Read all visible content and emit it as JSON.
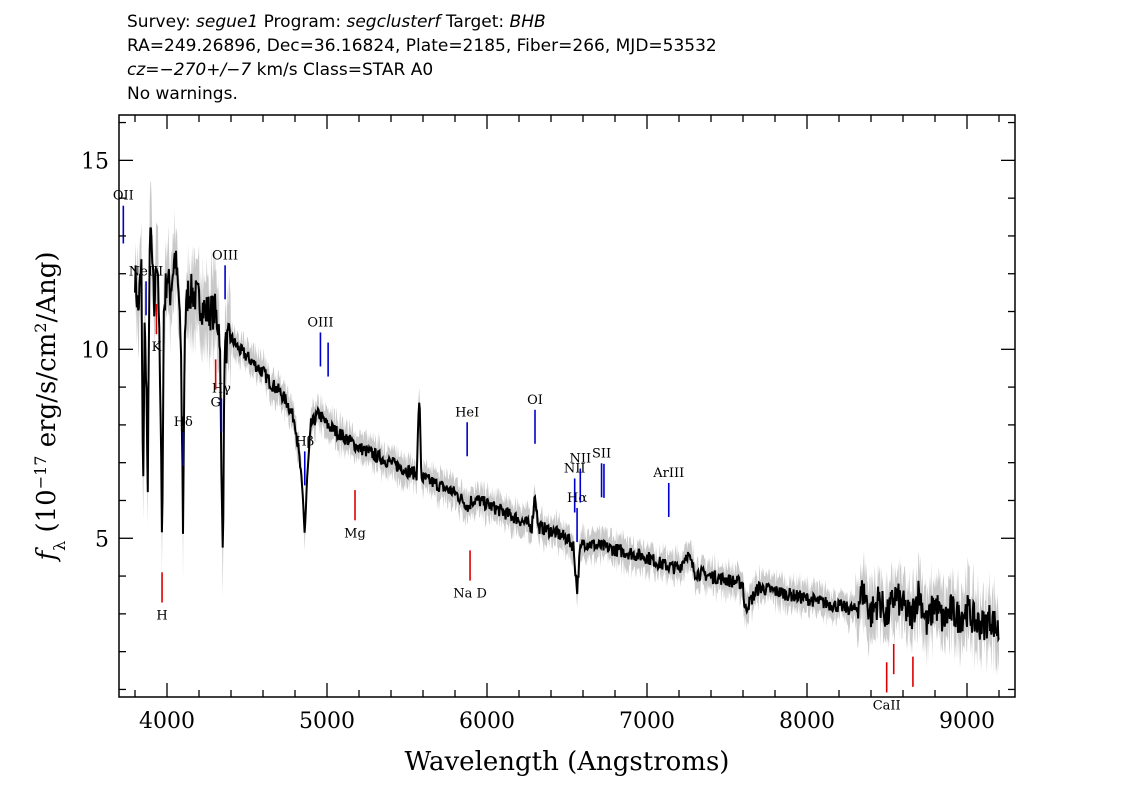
{
  "header": {
    "survey_label": "Survey:",
    "survey": "segue1",
    "program_label": "Program:",
    "program": "segclusterf",
    "target_label": "Target:",
    "target": "BHB",
    "line2": "RA=249.26896, Dec=36.16824, Plate=2185, Fiber=266, MJD=53532",
    "cz_label": "cz=",
    "cz_value": "−270+/−7",
    "cz_rest": " km/s Class=STAR A0",
    "line4": "No warnings."
  },
  "chart_data": {
    "type": "line",
    "xlabel": "Wavelength (Angstroms)",
    "ylabel": "f_λ (10^-17 erg/s/cm^2/Ang)",
    "xlim": [
      3700,
      9300
    ],
    "ylim": [
      0.8,
      16.2
    ],
    "xticks": [
      4000,
      5000,
      6000,
      7000,
      8000,
      9000
    ],
    "yticks": [
      5,
      10,
      15
    ],
    "colors": {
      "flux": "#000000",
      "error_band": "#bbbbbb",
      "emission_lines": "#0000cc",
      "absorption_lines": "#dd0000"
    },
    "series": [
      {
        "name": "flux",
        "x": [
          3800,
          3820,
          3840,
          3850,
          3860,
          3870,
          3880,
          3890,
          3900,
          3920,
          3935,
          3945,
          3960,
          3970,
          3980,
          4000,
          4020,
          4050,
          4080,
          4090,
          4101,
          4110,
          4130,
          4160,
          4200,
          4240,
          4300,
          4330,
          4340,
          4350,
          4360,
          4400,
          4450,
          4500,
          4550,
          4600,
          4650,
          4700,
          4750,
          4800,
          4830,
          4850,
          4861,
          4875,
          4900,
          4950,
          5000,
          5100,
          5200,
          5300,
          5400,
          5500,
          5560,
          5577,
          5590,
          5650,
          5700,
          5800,
          5850,
          5890,
          5900,
          5950,
          6000,
          6100,
          6200,
          6280,
          6300,
          6320,
          6400,
          6500,
          6540,
          6563,
          6580,
          6600,
          6700,
          6800,
          6900,
          7000,
          7100,
          7200,
          7250,
          7300,
          7400,
          7500,
          7600,
          7610,
          7700,
          7800,
          7900,
          8000,
          8100,
          8200,
          8300,
          8350,
          8400,
          8450,
          8500,
          8550,
          8600,
          8650,
          8700,
          8750,
          8800,
          8850,
          8900,
          8950,
          9000,
          9050,
          9100,
          9150,
          9200
        ],
        "values": [
          12.0,
          11.0,
          12.2,
          6.0,
          10.5,
          9.5,
          5.8,
          12.5,
          13.0,
          11.0,
          12.5,
          12.0,
          8.0,
          5.0,
          11.0,
          12.0,
          11.5,
          12.5,
          11.0,
          9.0,
          5.0,
          10.5,
          11.5,
          11.5,
          11.3,
          11.0,
          11.0,
          10.5,
          6.5,
          4.9,
          10.0,
          10.3,
          10.0,
          9.8,
          9.6,
          9.4,
          9.1,
          8.9,
          8.6,
          8.1,
          7.0,
          6.0,
          5.1,
          6.5,
          8.0,
          8.3,
          8.0,
          7.7,
          7.4,
          7.2,
          7.0,
          6.8,
          6.7,
          8.8,
          6.6,
          6.5,
          6.4,
          6.2,
          6.0,
          5.8,
          6.0,
          6.0,
          5.9,
          5.7,
          5.5,
          5.3,
          6.2,
          5.3,
          5.2,
          5.0,
          4.8,
          3.6,
          4.6,
          4.9,
          4.8,
          4.7,
          4.6,
          4.5,
          4.3,
          4.2,
          4.6,
          4.1,
          4.0,
          3.9,
          3.8,
          3.1,
          3.7,
          3.6,
          3.5,
          3.4,
          3.3,
          3.2,
          3.1,
          3.6,
          3.0,
          3.4,
          2.9,
          3.5,
          3.2,
          2.9,
          3.6,
          2.7,
          3.3,
          2.8,
          3.1,
          2.9,
          3.1,
          2.8,
          2.7,
          2.9,
          2.5
        ]
      }
    ],
    "emission_lines": [
      {
        "label": "OII",
        "x": 3727
      },
      {
        "label": "NeIII",
        "x": 3869
      },
      {
        "label": "Hδ",
        "x": 4102
      },
      {
        "label": "Hγ",
        "x": 4340
      },
      {
        "label": "OIII",
        "x": 4363
      },
      {
        "label": "Hβ",
        "x": 4861
      },
      {
        "label": "OIII",
        "x": 4959
      },
      {
        "label": "",
        "x": 5007
      },
      {
        "label": "HeI",
        "x": 5876
      },
      {
        "label": "OI",
        "x": 6300
      },
      {
        "label": "NII",
        "x": 6548
      },
      {
        "label": "Hα",
        "x": 6563
      },
      {
        "label": "NII",
        "x": 6583
      },
      {
        "label": "SII",
        "x": 6716
      },
      {
        "label": "",
        "x": 6731
      },
      {
        "label": "ArIII",
        "x": 7136
      }
    ],
    "absorption_lines": [
      {
        "label": "K",
        "x": 3934
      },
      {
        "label": "H",
        "x": 3969
      },
      {
        "label": "G",
        "x": 4304
      },
      {
        "label": "Mg",
        "x": 5175
      },
      {
        "label": "Na D",
        "x": 5894
      },
      {
        "label": "CaII",
        "x": 8498
      },
      {
        "label": "",
        "x": 8542
      },
      {
        "label": "",
        "x": 8662
      }
    ]
  }
}
